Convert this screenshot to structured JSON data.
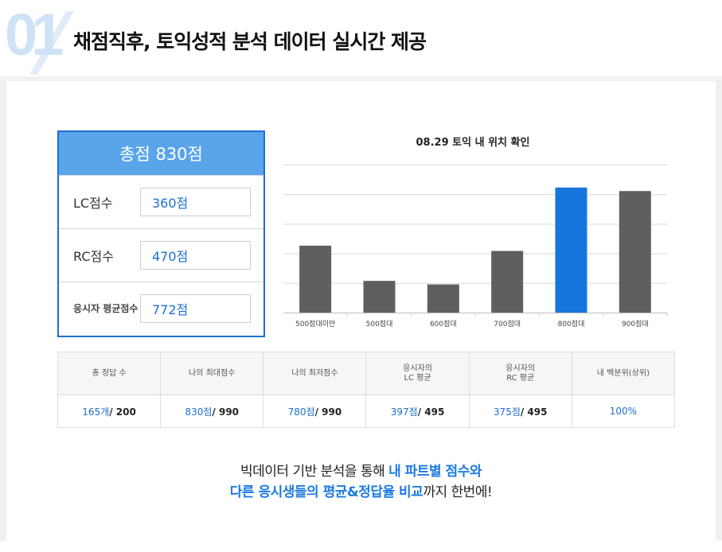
{
  "header": {
    "number": "01",
    "title": "채점직후, 토익성적 분석 데이터 실시간 제공"
  },
  "score": {
    "total": "총점 830점",
    "rows": [
      {
        "label": "LC점수",
        "value": "360점"
      },
      {
        "label": "RC점수",
        "value": "470점"
      },
      {
        "label": "응시자 평균점수",
        "value": "772점"
      }
    ]
  },
  "chart_data": {
    "type": "bar",
    "title": "08.29 토익 내 위치 확인",
    "categories": [
      "500점대미만",
      "500점대",
      "600점대",
      "700점대",
      "800점대",
      "900점대"
    ],
    "values": [
      38,
      18,
      16,
      35,
      71,
      69
    ],
    "highlight_index": 4,
    "colors": {
      "normal": "#5f5f5f",
      "highlight": "#1576dc"
    },
    "ylim": [
      0,
      84
    ],
    "gridlines": 4
  },
  "stats": {
    "headers": [
      "총 정답 수",
      "나의 최대점수",
      "나의 최저점수",
      "응시자의 LC 평균",
      "응시자의 RC 평균",
      "내 백분위(상위)"
    ],
    "values": [
      {
        "blue": "165개",
        "rest": "/ 200"
      },
      {
        "blue": "830점",
        "rest": "/ 990"
      },
      {
        "blue": "780점",
        "rest": "/ 990"
      },
      {
        "blue": "397점",
        "rest": "/ 495"
      },
      {
        "blue": "375점",
        "rest": "/ 495"
      },
      {
        "blue": "100%",
        "rest": ""
      }
    ]
  },
  "bottom": {
    "line1_a": "빅데이터 기반 분석을 통해 ",
    "line1_b": "내 파트별 점수와",
    "line2_a": "다른 응시생들의 평균&정답율 비교",
    "line2_b": "까지 한번에!"
  }
}
